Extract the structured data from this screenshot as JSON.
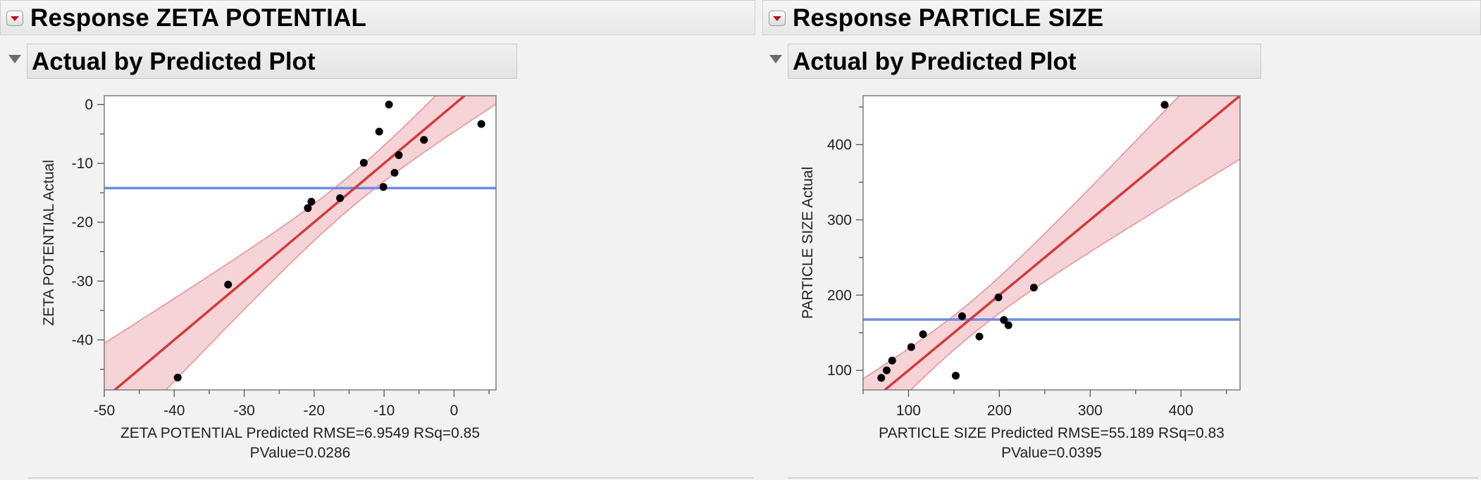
{
  "panels": [
    {
      "response_title": "Response ZETA POTENTIAL",
      "section_title": "Actual by Predicted Plot"
    },
    {
      "response_title": "Response PARTICLE SIZE",
      "section_title": "Actual by Predicted Plot"
    }
  ],
  "colors": {
    "fit_line": "#d23a3f",
    "mean_line": "#6f8ae6",
    "confidence_band": "#f5d3d6",
    "confidence_edge": "#e79499",
    "points": "#000000"
  },
  "chart_data": [
    {
      "type": "scatter",
      "title": "",
      "xlabel": "ZETA POTENTIAL Predicted RMSE=6.9549 RSq=0.85",
      "xlabel2": "PValue=0.0286",
      "ylabel": "ZETA POTENTIAL Actual",
      "xlim": [
        -50,
        6
      ],
      "ylim": [
        -48.5,
        1.5
      ],
      "x_ticks": [
        -50,
        -40,
        -30,
        -20,
        -10,
        0
      ],
      "x_tick_labels": [
        "-50",
        "-40",
        "-30",
        "-20",
        "-10",
        "0"
      ],
      "y_ticks": [
        0,
        -10,
        -20,
        -30,
        -40
      ],
      "y_tick_labels": [
        "0",
        "-10",
        "-20",
        "-30",
        "-40"
      ],
      "mean_y": -14.2,
      "fit": {
        "slope": 1.0,
        "intercept": 0
      },
      "x": [
        -39.5,
        -32.3,
        -20.9,
        -20.4,
        -16.3,
        -12.9,
        -10.7,
        -10.1,
        -9.3,
        -8.5,
        -7.9,
        -4.3,
        3.9
      ],
      "y": [
        -46.4,
        -30.6,
        -17.6,
        -16.5,
        -15.9,
        -9.9,
        -4.6,
        -14.0,
        0.0,
        -11.6,
        -8.6,
        -6.0,
        -3.3
      ]
    },
    {
      "type": "scatter",
      "title": "",
      "xlabel": "PARTICLE SIZE Predicted RMSE=55.189 RSq=0.83",
      "xlabel2": "PValue=0.0395",
      "ylabel": "PARTICLE SIZE Actual",
      "xlim": [
        50,
        465
      ],
      "ylim": [
        74,
        465
      ],
      "x_ticks": [
        100,
        200,
        300,
        400
      ],
      "x_tick_labels": [
        "100",
        "200",
        "300",
        "400"
      ],
      "y_ticks": [
        100,
        200,
        300,
        400
      ],
      "y_tick_labels": [
        "100",
        "200",
        "300",
        "400"
      ],
      "mean_y": 167.5,
      "fit": {
        "slope": 1.0,
        "intercept": 0
      },
      "x": [
        70,
        76,
        82,
        103,
        116,
        152,
        159,
        178,
        199,
        205,
        210,
        238,
        382
      ],
      "y": [
        90,
        100,
        113,
        131,
        148,
        93,
        172,
        145,
        197,
        167,
        160,
        210,
        453
      ]
    }
  ]
}
